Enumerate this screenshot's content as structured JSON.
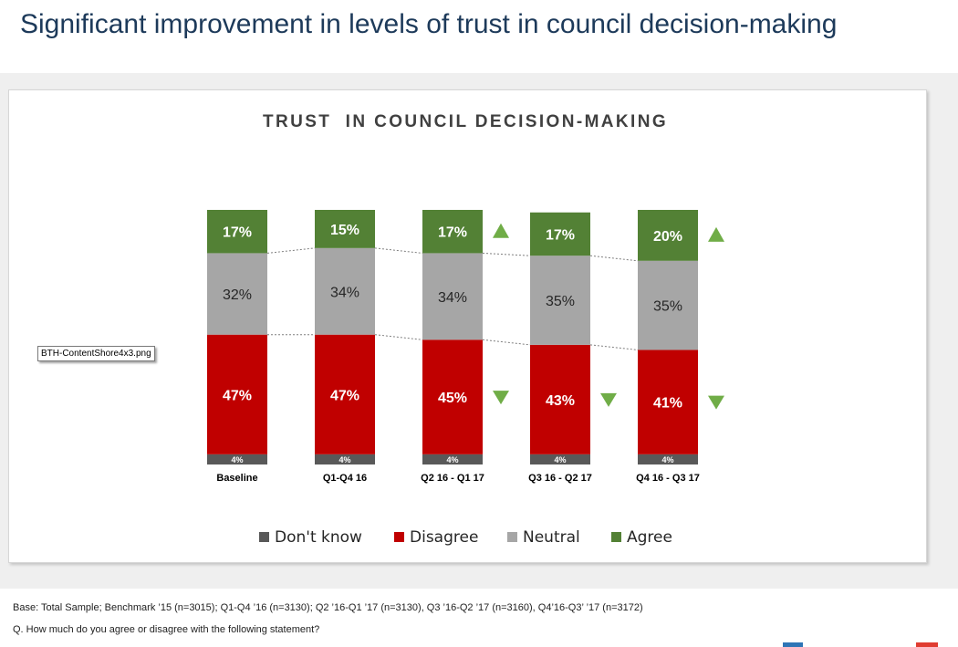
{
  "slide": {
    "title": "Significant improvement in levels of trust in council decision-making"
  },
  "file_label": "BTH-ContentShore4x3.png",
  "footnotes": {
    "base": "Base: Total Sample; Benchmark ’15 (n=3015); Q1-Q4 ’16 (n=3130); Q2 ’16-Q1 ’17 (n=3130), Q3 ’16-Q2 ’17 (n=3160), Q4’16-Q3’ ’17 (n=3172)",
    "question": "Q. How much do you agree or disagree with the following statement?"
  },
  "colors": {
    "dont_know": "#595959",
    "disagree": "#c00000",
    "neutral": "#a6a6a6",
    "agree": "#538135",
    "arrow": "#70ad47"
  },
  "chart_data": {
    "type": "bar",
    "stacked": true,
    "percent_stacked": true,
    "title": "TRUST  IN COUNCIL DECISION-MAKING",
    "categories": [
      "Baseline",
      "Q1-Q4 16",
      "Q2 16 - Q1 17",
      "Q3 16 - Q2 17",
      "Q4 16 - Q3 17"
    ],
    "series": [
      {
        "name": "Don't know",
        "values": [
          4,
          4,
          4,
          4,
          4
        ],
        "labels": [
          "4%",
          "4%",
          "4%",
          "4%",
          "4%"
        ]
      },
      {
        "name": "Disagree",
        "values": [
          47,
          47,
          45,
          43,
          41
        ],
        "labels": [
          "47%",
          "47%",
          "45%",
          "43%",
          "41%"
        ]
      },
      {
        "name": "Neutral",
        "values": [
          32,
          34,
          34,
          35,
          35
        ],
        "labels": [
          "32%",
          "34%",
          "34%",
          "35%",
          "35%"
        ]
      },
      {
        "name": "Agree",
        "values": [
          17,
          15,
          17,
          17,
          20
        ],
        "labels": [
          "17%",
          "15%",
          "17%",
          "17%",
          "20%"
        ]
      }
    ],
    "legend": [
      "Don't know",
      "Disagree",
      "Neutral",
      "Agree"
    ],
    "legend_position": "bottom",
    "ylim": [
      0,
      100
    ],
    "grid": false,
    "series_lines": true,
    "significance_markers": [
      {
        "category": "Q2 16 - Q1 17",
        "series": "Agree",
        "direction": "up"
      },
      {
        "category": "Q4 16 - Q3 17",
        "series": "Agree",
        "direction": "up"
      },
      {
        "category": "Q2 16 - Q1 17",
        "series": "Disagree",
        "direction": "down"
      },
      {
        "category": "Q3 16 - Q2 17",
        "series": "Disagree",
        "direction": "down"
      },
      {
        "category": "Q4 16 - Q3 17",
        "series": "Disagree",
        "direction": "down"
      }
    ]
  }
}
